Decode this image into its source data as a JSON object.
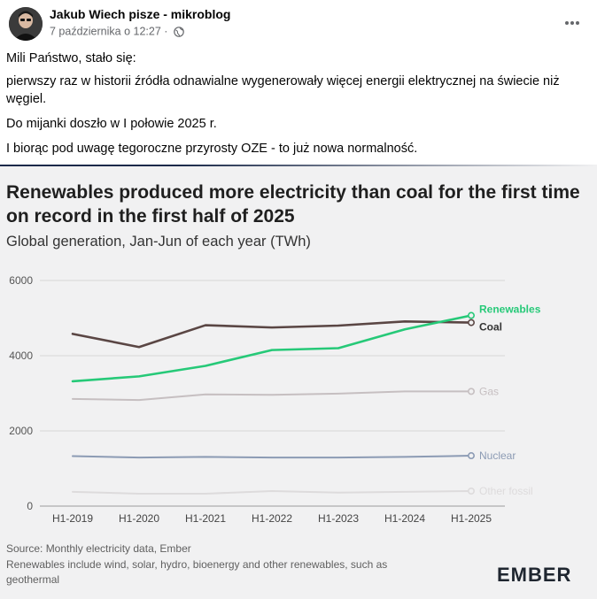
{
  "post": {
    "author": "Jakub Wiech pisze - mikroblog",
    "timestamp": "7 października o 12:27 ·",
    "paragraphs": [
      "Mili Państwo, stało się:",
      "pierwszy raz w historii źródła odnawialne wygenerowały więcej energii elektrycznej na świecie niż węgiel.",
      "Do mijanki doszło w I połowie 2025 r.",
      "I biorąc pod uwagę tegoroczne przyrosty OZE - to już nowa normalność."
    ]
  },
  "chart_data": {
    "type": "line",
    "title": "Renewables produced more electricity than coal for the first time on record in the first half of 2025",
    "subtitle": "Global generation, Jan-Jun of each year (TWh)",
    "xlabel": "",
    "ylabel": "",
    "ylim": [
      0,
      6000
    ],
    "yticks": [
      "0",
      "2000",
      "4000",
      "6000"
    ],
    "categories": [
      "H1-2019",
      "H1-2020",
      "H1-2021",
      "H1-2022",
      "H1-2023",
      "H1-2024",
      "H1-2025"
    ],
    "series": [
      {
        "name": "Renewables",
        "color": "#26c978",
        "values": [
          3320,
          3450,
          3730,
          4150,
          4200,
          4700,
          5070
        ]
      },
      {
        "name": "Coal",
        "color": "#5a4644",
        "values": [
          4580,
          4230,
          4810,
          4750,
          4800,
          4910,
          4880
        ]
      },
      {
        "name": "Gas",
        "color": "#c6bfc1",
        "values": [
          2850,
          2820,
          2970,
          2960,
          2990,
          3050,
          3050
        ]
      },
      {
        "name": "Nuclear",
        "color": "#8c9bb4",
        "values": [
          1330,
          1290,
          1310,
          1290,
          1290,
          1310,
          1340
        ]
      },
      {
        "name": "Other fossil",
        "color": "#dddbdc",
        "values": [
          380,
          330,
          330,
          400,
          360,
          380,
          400
        ]
      }
    ],
    "source_lines": [
      "Source: Monthly electricity data, Ember",
      "Renewables include wind, solar, hydro, bioenergy and other renewables, such as",
      "geothermal"
    ],
    "logo": "EMBER"
  }
}
